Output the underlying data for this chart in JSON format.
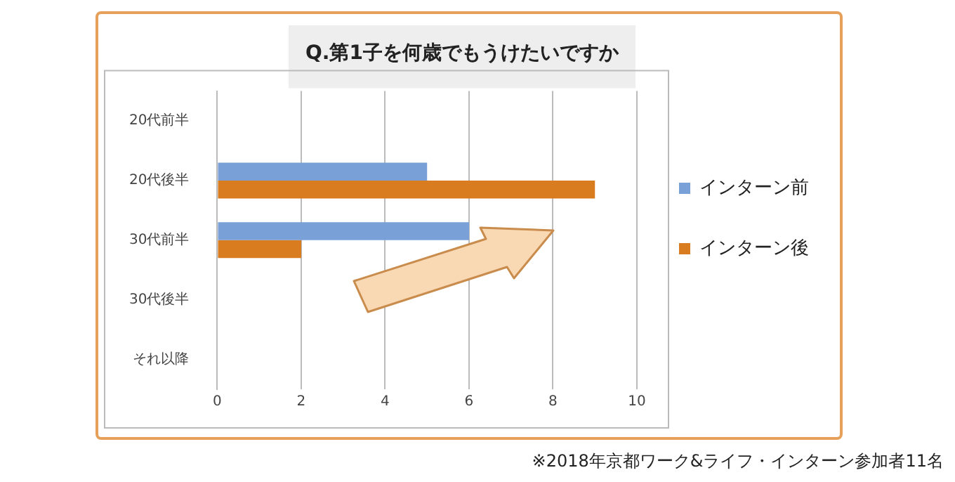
{
  "chart_data": {
    "type": "bar",
    "orientation": "horizontal",
    "title": "Q.第1子を何歳でもうけたいですか",
    "categories": [
      "20代前半",
      "20代後半",
      "30代前半",
      "30代後半",
      "それ以降"
    ],
    "series": [
      {
        "name": "インターン前",
        "color": "#7aa0d8",
        "values": [
          0,
          5,
          6,
          0,
          0
        ]
      },
      {
        "name": "インターン後",
        "color": "#d97c1f",
        "values": [
          0,
          9,
          2,
          0,
          0
        ]
      }
    ],
    "xlim": [
      0,
      10
    ],
    "xticks": [
      0,
      2,
      4,
      6,
      8,
      10
    ],
    "grid": "x",
    "legend": "right",
    "annotations": [
      "※2018年京都ワーク&ライフ・インターン参加者11名"
    ]
  }
}
